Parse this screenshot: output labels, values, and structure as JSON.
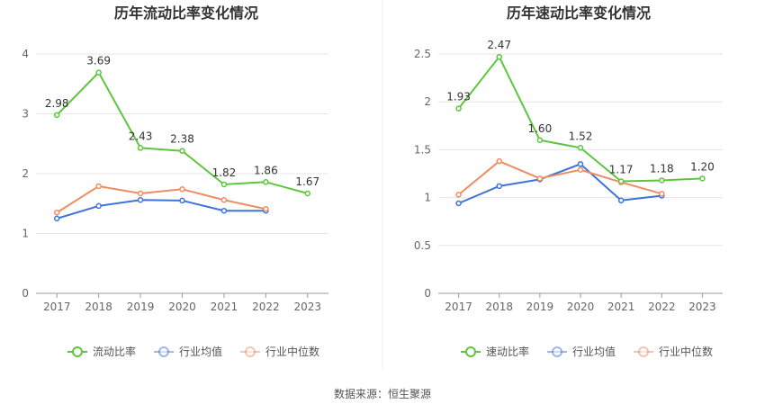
{
  "source": "数据来源：恒生聚源",
  "chart_data": [
    {
      "type": "line",
      "title": "历年流动比率变化情况",
      "categories": [
        "2017",
        "2018",
        "2019",
        "2020",
        "2021",
        "2022",
        "2023"
      ],
      "ylim": [
        0,
        4
      ],
      "yticks": [
        "0",
        "1",
        "2",
        "3",
        "4"
      ],
      "grid": true,
      "legend_position": "bottom",
      "series": [
        {
          "name": "流动比率",
          "color": "#5cc73d",
          "values": [
            2.98,
            3.69,
            2.43,
            2.38,
            1.82,
            1.86,
            1.67
          ],
          "labels": [
            "2.98",
            "3.69",
            "2.43",
            "2.38",
            "1.82",
            "1.86",
            "1.67"
          ]
        },
        {
          "name": "行业均值",
          "color": "#3f74d8",
          "values": [
            1.25,
            1.46,
            1.56,
            1.55,
            1.38,
            1.38,
            null
          ]
        },
        {
          "name": "行业中位数",
          "color": "#ef8d61",
          "values": [
            1.35,
            1.79,
            1.67,
            1.74,
            1.56,
            1.41,
            null
          ]
        }
      ]
    },
    {
      "type": "line",
      "title": "历年速动比率变化情况",
      "categories": [
        "2017",
        "2018",
        "2019",
        "2020",
        "2021",
        "2022",
        "2023"
      ],
      "ylim": [
        0,
        2.5
      ],
      "yticks": [
        "0",
        "0.5",
        "1",
        "1.5",
        "2",
        "2.5"
      ],
      "grid": true,
      "legend_position": "bottom",
      "series": [
        {
          "name": "速动比率",
          "color": "#5cc73d",
          "values": [
            1.93,
            2.47,
            1.6,
            1.52,
            1.17,
            1.18,
            1.2
          ],
          "labels": [
            "1.93",
            "2.47",
            "1.60",
            "1.52",
            "1.17",
            "1.18",
            "1.20"
          ]
        },
        {
          "name": "行业均值",
          "color": "#3f74d8",
          "values": [
            0.94,
            1.12,
            1.19,
            1.35,
            0.97,
            1.02,
            null
          ]
        },
        {
          "name": "行业中位数",
          "color": "#ef8d61",
          "values": [
            1.03,
            1.38,
            1.2,
            1.29,
            1.16,
            1.04,
            null
          ]
        }
      ]
    }
  ]
}
